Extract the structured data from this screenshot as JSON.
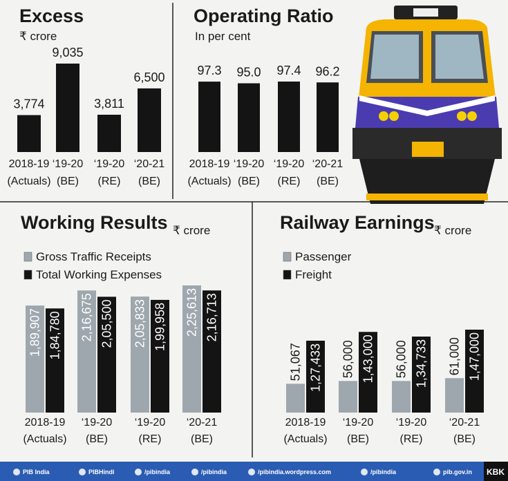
{
  "chart_data": [
    {
      "type": "bar",
      "title": "Excess",
      "subtitle": "₹ crore",
      "categories": [
        [
          "2018-19",
          "(Actuals)"
        ],
        [
          "‘19-20",
          "(BE)"
        ],
        [
          "‘19-20",
          "(RE)"
        ],
        [
          "‘20-21",
          "(BE)"
        ]
      ],
      "values": [
        3774,
        9035,
        3811,
        6500
      ],
      "value_labels": [
        "3,774",
        "9,035",
        "3,811",
        "6,500"
      ],
      "color": "#141414"
    },
    {
      "type": "bar",
      "title": "Operating Ratio",
      "subtitle": "In per cent",
      "categories": [
        [
          "2018-19",
          "(Actuals)"
        ],
        [
          "‘19-20",
          "(BE)"
        ],
        [
          "‘19-20",
          "(RE)"
        ],
        [
          "‘20-21",
          "(BE)"
        ]
      ],
      "values": [
        97.3,
        95.0,
        97.4,
        96.2
      ],
      "value_labels": [
        "97.3",
        "95.0",
        "97.4",
        "96.2"
      ],
      "color": "#141414"
    },
    {
      "type": "bar",
      "title": "Working Results",
      "subtitle": "₹ crore",
      "categories": [
        [
          "2018-19",
          "(Actuals)"
        ],
        [
          "‘19-20",
          "(BE)"
        ],
        [
          "‘19-20",
          "(RE)"
        ],
        [
          "‘20-21",
          "(BE)"
        ]
      ],
      "series": [
        {
          "name": "Gross Traffic Receipts",
          "color": "#9ea7ad",
          "values": [
            189907,
            216675,
            205833,
            225613
          ],
          "value_labels": [
            "1,89,907",
            "2,16,675",
            "2,05,833",
            "2,25,613"
          ]
        },
        {
          "name": "Total Working Expenses",
          "color": "#141414",
          "values": [
            184780,
            205500,
            199958,
            216713
          ],
          "value_labels": [
            "1,84,780",
            "2,05,500",
            "1,99,958",
            "2,16,713"
          ]
        }
      ]
    },
    {
      "type": "bar",
      "title": "Railway Earnings",
      "subtitle": "₹ crore",
      "categories": [
        [
          "2018-19",
          "(Actuals)"
        ],
        [
          "‘19-20",
          "(BE)"
        ],
        [
          "‘19-20",
          "(RE)"
        ],
        [
          "‘20-21",
          "(BE)"
        ]
      ],
      "series": [
        {
          "name": "Passenger",
          "color": "#9ea7ad",
          "values": [
            51067,
            56000,
            56000,
            61000
          ],
          "value_labels": [
            "51,067",
            "56,000",
            "56,000",
            "61,000"
          ]
        },
        {
          "name": "Freight",
          "color": "#141414",
          "values": [
            127433,
            143000,
            134733,
            147000
          ],
          "value_labels": [
            "1,27,433",
            "1,43,000",
            "1,34,733",
            "1,47,000"
          ]
        }
      ]
    }
  ],
  "footer": {
    "handles": [
      "PIB India",
      "PIBHindi",
      "/pibindia",
      "/pibindia",
      "/pibindia.wordpress.com",
      "/pibindia",
      "pib.gov.in"
    ],
    "credit": "KBK"
  }
}
